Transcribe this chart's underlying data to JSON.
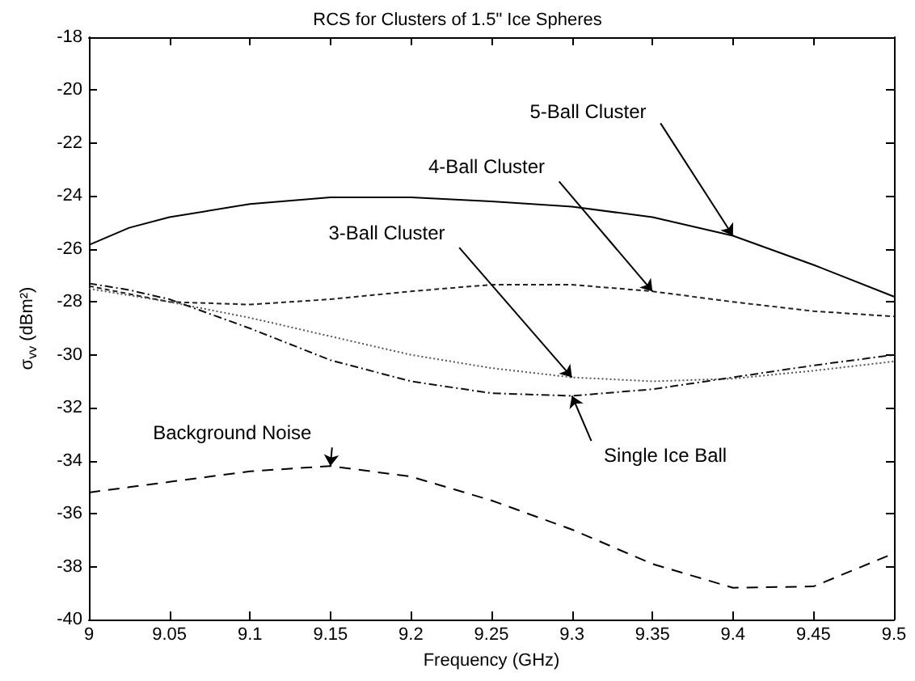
{
  "chart_data": {
    "type": "line",
    "title": "RCS for Clusters of 1.5\" Ice Spheres",
    "xlabel": "Frequency (GHz)",
    "ylabel": "σ$_{vv}$ (dBm²)",
    "x": [
      9,
      9.025,
      9.05,
      9.1,
      9.15,
      9.2,
      9.25,
      9.3,
      9.35,
      9.4,
      9.45,
      9.5
    ],
    "series": [
      {
        "name": "5-Ball Cluster",
        "color": "#000000",
        "line_style": "solid",
        "values": [
          -25.85,
          -25.2,
          -24.8,
          -24.3,
          -24.05,
          -24.05,
          -24.2,
          -24.4,
          -24.8,
          -25.5,
          -26.6,
          -27.8
        ]
      },
      {
        "name": "4-Ball Cluster",
        "color": "#222222",
        "line_style": "dashed",
        "values": [
          -27.4,
          -27.7,
          -28.0,
          -28.1,
          -27.9,
          -27.6,
          -27.35,
          -27.35,
          -27.6,
          -28.0,
          -28.35,
          -28.55
        ]
      },
      {
        "name": "3-Ball Cluster",
        "color": "#555555",
        "line_style": "dotted",
        "values": [
          -27.5,
          -27.75,
          -28.0,
          -28.6,
          -29.3,
          -30.0,
          -30.5,
          -30.85,
          -31.0,
          -30.9,
          -30.6,
          -30.25
        ]
      },
      {
        "name": "Single Ice Ball",
        "color": "#111111",
        "line_style": "dashdot",
        "values": [
          -27.3,
          -27.55,
          -27.9,
          -29.0,
          -30.2,
          -31.0,
          -31.45,
          -31.55,
          -31.3,
          -30.85,
          -30.4,
          -30.0
        ]
      },
      {
        "name": "Background Noise",
        "color": "#000000",
        "line_style": "longdash",
        "values": [
          -35.2,
          -35.0,
          -34.8,
          -34.4,
          -34.2,
          -34.6,
          -35.5,
          -36.6,
          -37.9,
          -38.8,
          -38.75,
          -37.5
        ]
      }
    ],
    "xlim": [
      9,
      9.5
    ],
    "xticks": [
      9,
      9.05,
      9.1,
      9.15,
      9.2,
      9.25,
      9.3,
      9.35,
      9.4,
      9.45,
      9.5
    ],
    "ylim": [
      -40,
      -18
    ],
    "yticks": [
      -40,
      -38,
      -36,
      -34,
      -32,
      -30,
      -28,
      -26,
      -24,
      -22,
      -20,
      -18
    ],
    "grid": false,
    "legend": false,
    "marker": "none"
  }
}
